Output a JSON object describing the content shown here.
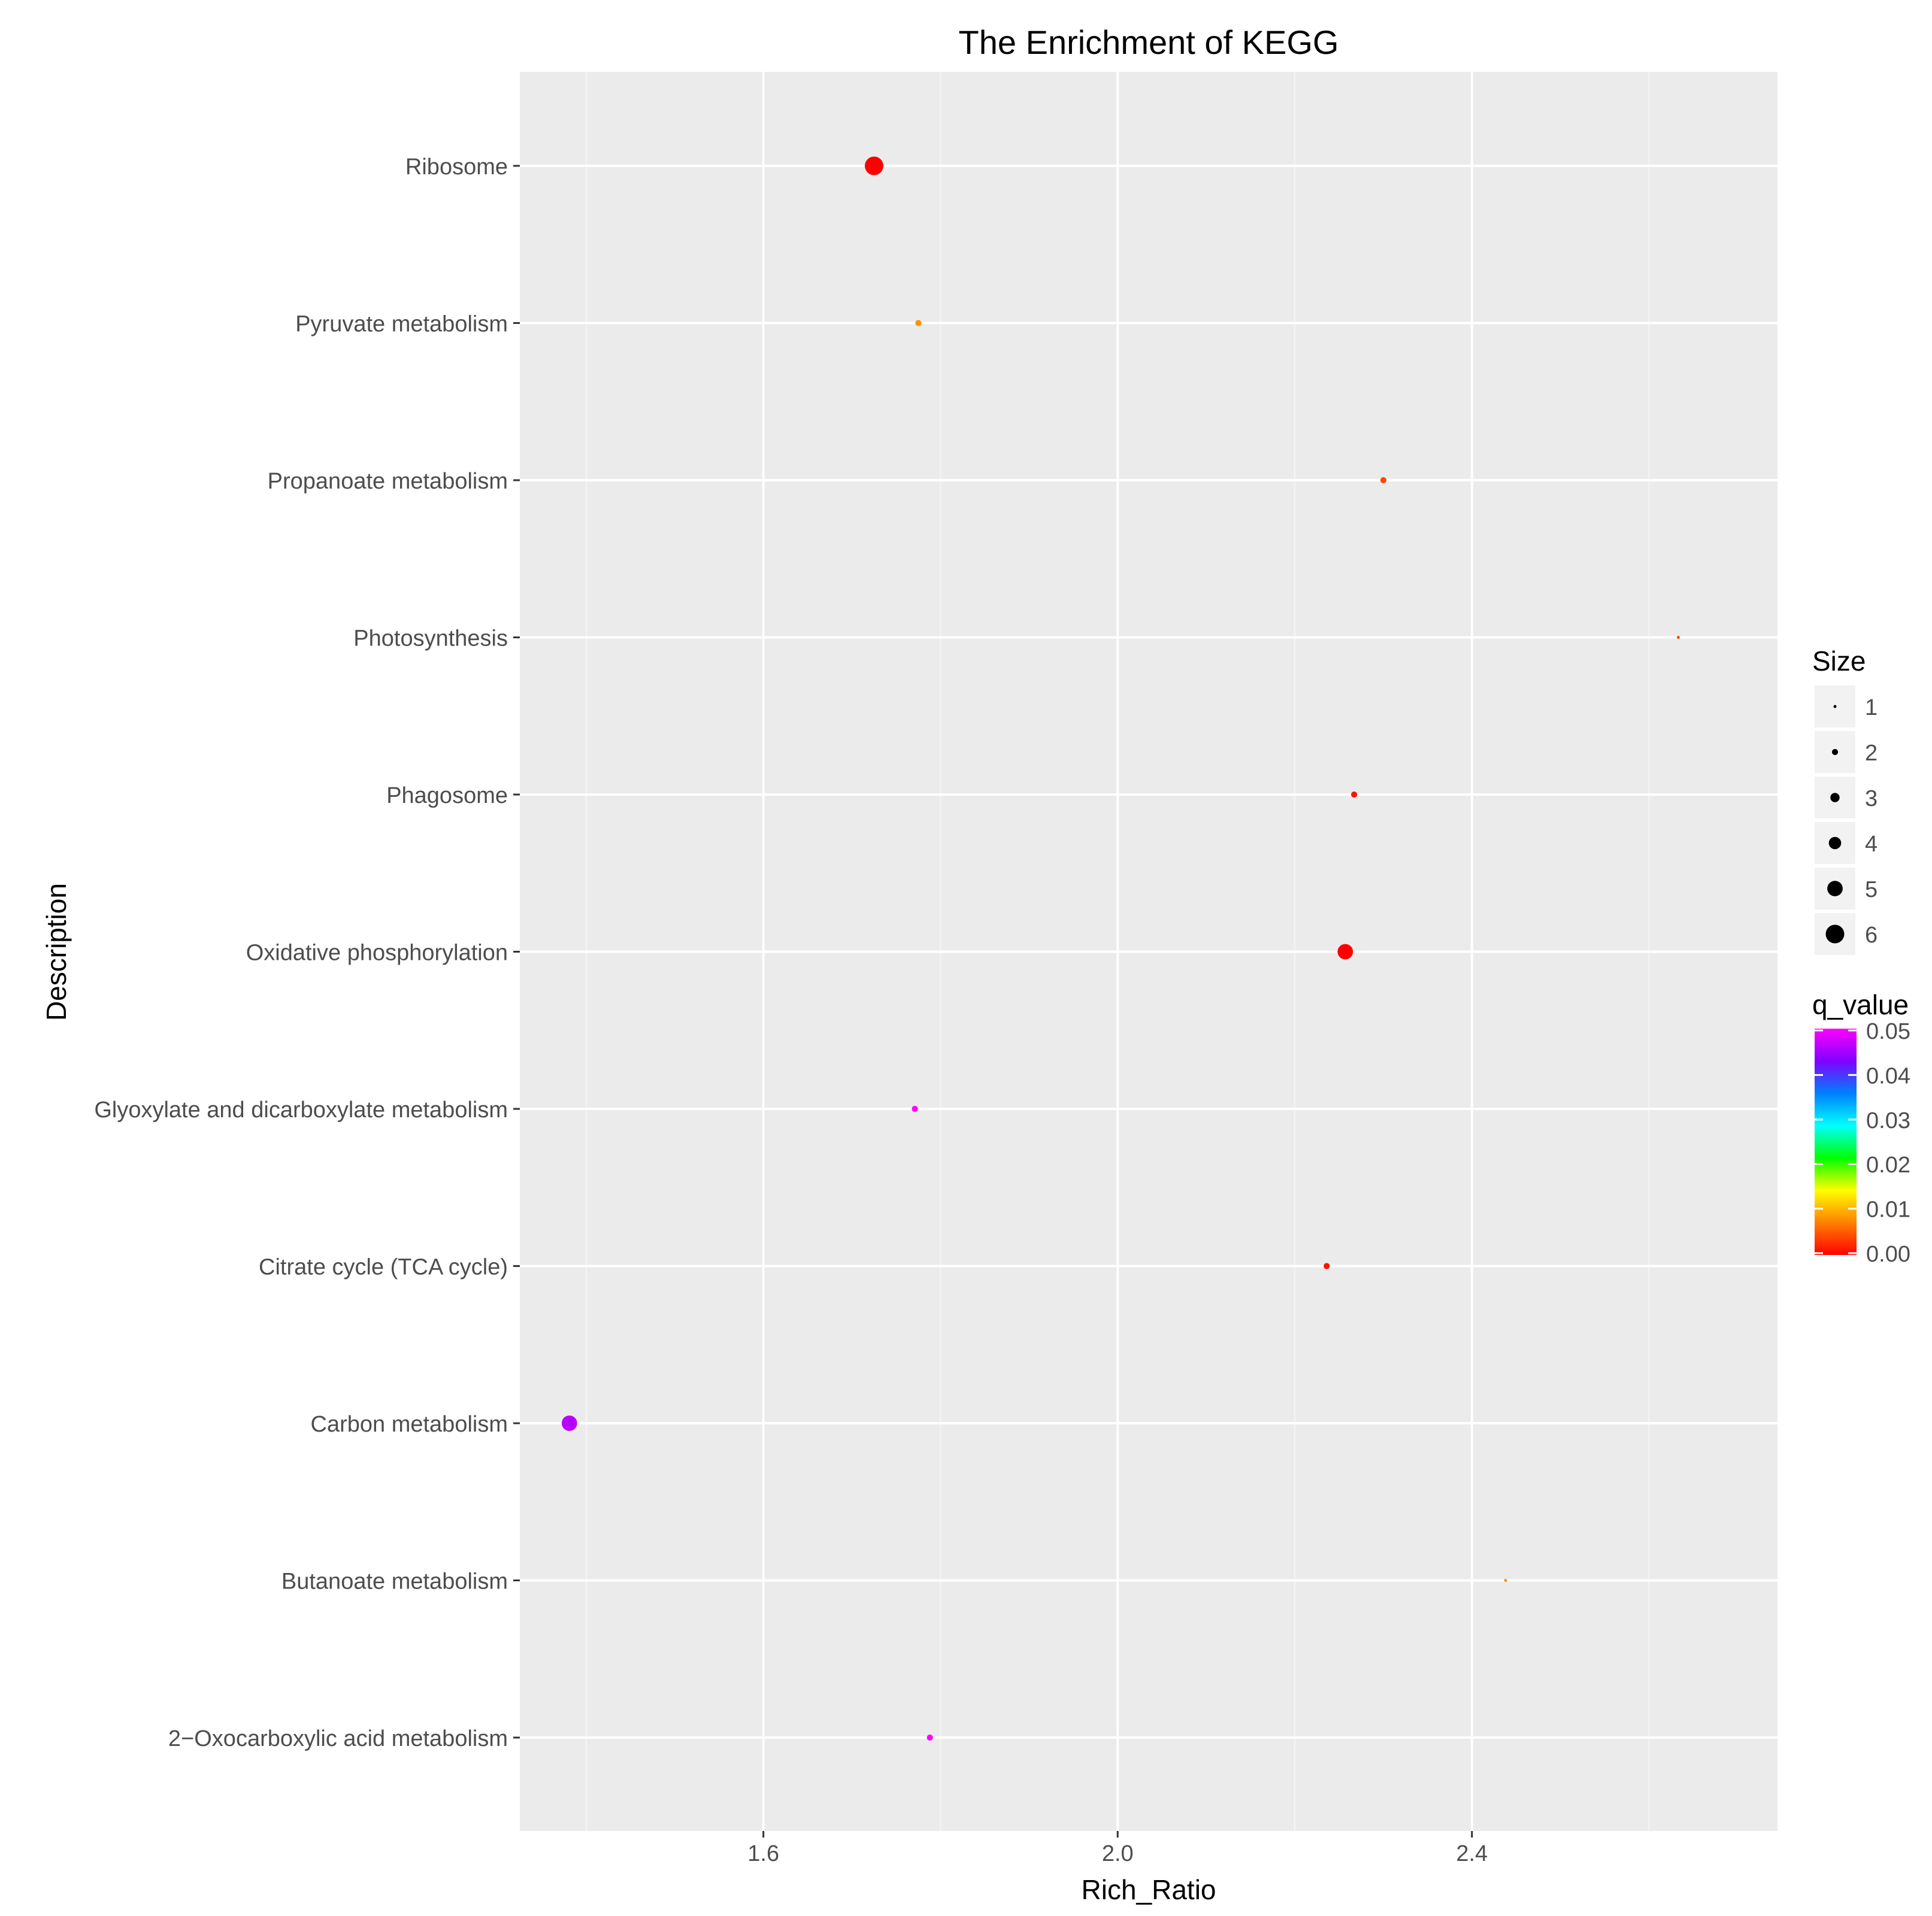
{
  "chart_data": {
    "type": "scatter",
    "title": "The Enrichment of KEGG",
    "xlabel": "Rich_Ratio",
    "ylabel": "Description",
    "xlim": [
      1.325,
      2.745
    ],
    "xticks": [
      {
        "value": 1.6,
        "label": "1.6"
      },
      {
        "value": 2.0,
        "label": "2.0"
      },
      {
        "value": 2.4,
        "label": "2.4"
      }
    ],
    "x_minor_breaks": [
      1.4,
      1.8,
      2.2,
      2.6
    ],
    "grid": true,
    "categories": [
      "Ribosome",
      "Pyruvate metabolism",
      "Propanoate metabolism",
      "Photosynthesis",
      "Phagosome",
      "Oxidative phosphorylation",
      "Glyoxylate and dicarboxylate metabolism",
      "Citrate cycle (TCA cycle)",
      "Carbon metabolism",
      "Butanoate metabolism",
      "2−Oxocarboxylic acid metabolism"
    ],
    "points": [
      {
        "description": "Ribosome",
        "rich_ratio": 1.725,
        "size": 6,
        "q_value": 0.0
      },
      {
        "description": "Pyruvate metabolism",
        "rich_ratio": 1.775,
        "size": 2,
        "q_value": 0.008
      },
      {
        "description": "Propanoate metabolism",
        "rich_ratio": 2.3,
        "size": 2,
        "q_value": 0.004
      },
      {
        "description": "Photosynthesis",
        "rich_ratio": 2.633,
        "size": 1,
        "q_value": 0.004
      },
      {
        "description": "Phagosome",
        "rich_ratio": 2.267,
        "size": 2,
        "q_value": 0.001
      },
      {
        "description": "Oxidative phosphorylation",
        "rich_ratio": 2.257,
        "size": 5,
        "q_value": 0.0
      },
      {
        "description": "Glyoxylate and dicarboxylate metabolism",
        "rich_ratio": 1.771,
        "size": 2,
        "q_value": 0.05
      },
      {
        "description": "Citrate cycle (TCA cycle)",
        "rich_ratio": 2.236,
        "size": 2,
        "q_value": 0.001
      },
      {
        "description": "Carbon metabolism",
        "rich_ratio": 1.381,
        "size": 5,
        "q_value": 0.046
      },
      {
        "description": "Butanoate metabolism",
        "rich_ratio": 2.438,
        "size": 1,
        "q_value": 0.008
      },
      {
        "description": "2−Oxocarboxylic acid metabolism",
        "rich_ratio": 1.788,
        "size": 2,
        "q_value": 0.05
      }
    ],
    "legend_size": {
      "title": "Size",
      "entries": [
        {
          "value": 1,
          "label": "1"
        },
        {
          "value": 2,
          "label": "2"
        },
        {
          "value": 3,
          "label": "3"
        },
        {
          "value": 4,
          "label": "4"
        },
        {
          "value": 5,
          "label": "5"
        },
        {
          "value": 6,
          "label": "6"
        }
      ]
    },
    "legend_color": {
      "title": "q_value",
      "range": [
        0.0,
        0.05
      ],
      "ticks": [
        {
          "value": 0.05,
          "label": "0.05"
        },
        {
          "value": 0.04,
          "label": "0.04"
        },
        {
          "value": 0.03,
          "label": "0.03"
        },
        {
          "value": 0.02,
          "label": "0.02"
        },
        {
          "value": 0.01,
          "label": "0.01"
        },
        {
          "value": 0.0,
          "label": "0.00"
        }
      ],
      "gradient": [
        "#ff0000",
        "#ff8000",
        "#ffff00",
        "#00ff00",
        "#00ffff",
        "#0080ff",
        "#8000ff",
        "#ff00ff"
      ]
    },
    "legend_position": "right"
  },
  "colors": {
    "panel_background": "#ebebeb",
    "grid_major": "#ffffff",
    "grid_minor": "#f5f5f5",
    "axis_text": "#4d4d4d",
    "tick": "#333333",
    "title": "#000000",
    "legend_key_background": "#f2f2f2",
    "point_default": "#000000"
  }
}
